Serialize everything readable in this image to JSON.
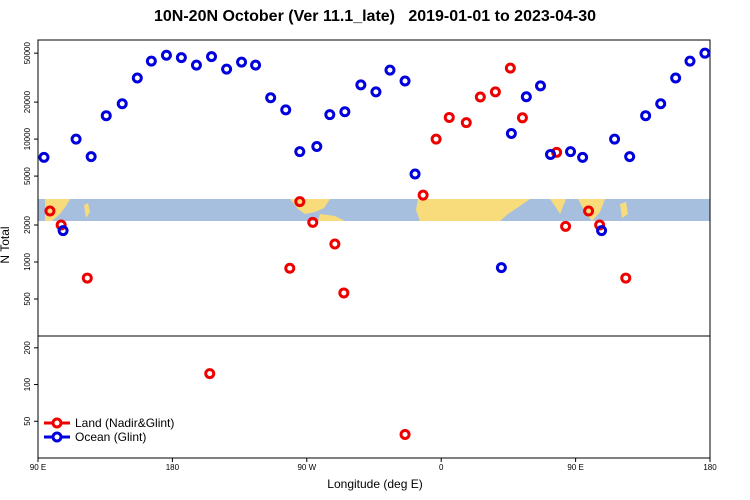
{
  "chart_data": {
    "type": "scatter",
    "title": "10N-20N October (Ver 11.1_late)   2019-01-01 to 2023-04-30",
    "x_label": "Longitude (deg E)",
    "y_label": "N Total",
    "xlim": [
      90,
      540
    ],
    "xticks": [
      {
        "value": 90,
        "label": "90 E"
      },
      180,
      {
        "value": 270,
        "label": "90 W"
      },
      {
        "value": 360,
        "label": "0"
      },
      {
        "value": 450,
        "label": "90 E"
      },
      {
        "value": 540,
        "label": "180"
      }
    ],
    "panels": [
      {
        "ylim": [
          250,
          64000
        ],
        "yticks": [
          500,
          1000,
          2000,
          5000,
          10000,
          20000,
          50000
        ],
        "log_scale": true
      },
      {
        "ylim": [
          25,
          250
        ],
        "yticks": [
          50,
          100,
          200
        ],
        "log_scale": true
      }
    ],
    "legend": "bottom-left",
    "series": [
      {
        "name": "Land (Nadir&Glint)",
        "color": "#ee0000",
        "x": [
          98,
          105.5,
          123,
          205,
          258.6,
          265.3,
          274,
          288.8,
          294.8,
          335.8,
          347.9,
          356.6,
          365.4,
          376.8,
          386.2,
          396.3,
          406.3,
          414.4,
          437.3,
          443.3,
          458.7,
          466.1,
          483.6
        ],
        "values": [
          2600,
          2000,
          740,
          123,
          890,
          3100,
          2100,
          1400,
          560,
          39,
          3500,
          10000,
          15000,
          13600,
          22000,
          24200,
          37800,
          14900,
          7800,
          1950,
          2600,
          2000,
          740
        ]
      },
      {
        "name": "Ocean (Glint)",
        "color": "#0000dd",
        "x": [
          94,
          106.8,
          115.5,
          125.6,
          135.7,
          146.4,
          156.5,
          165.9,
          176,
          186,
          196.1,
          206.2,
          216.3,
          226.3,
          235.7,
          245.8,
          255.9,
          265.3,
          276.7,
          285.4,
          295.5,
          306.2,
          316.3,
          325.7,
          335.8,
          342.5,
          400.3,
          407,
          417,
          426.5,
          433.2,
          446.6,
          454.7,
          467.4,
          476.1,
          486.2,
          496.9,
          507,
          517,
          526.6,
          536.6
        ],
        "values": [
          7100,
          1800,
          10000,
          7200,
          15500,
          19400,
          31400,
          43100,
          48100,
          46000,
          40000,
          46900,
          37100,
          42300,
          40000,
          21700,
          17300,
          7900,
          8700,
          15800,
          16700,
          27600,
          24200,
          36400,
          29700,
          5200,
          900,
          11100,
          22100,
          27100,
          7500,
          7900,
          7100,
          1800,
          10000,
          7200,
          15500,
          19400,
          31400,
          43100,
          50000
        ]
      }
    ]
  }
}
